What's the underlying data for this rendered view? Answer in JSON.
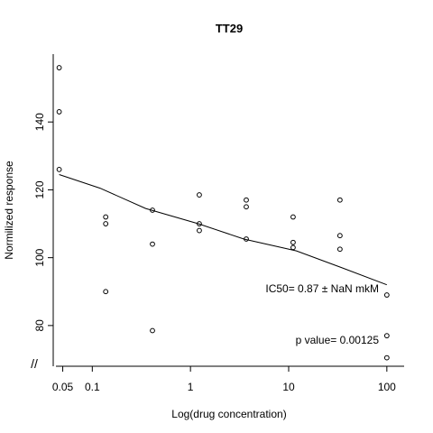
{
  "chart_data": {
    "type": "scatter",
    "title": "TT29",
    "xlabel": "Log(drug concentration)",
    "ylabel": "Normilized response",
    "x_scale": "log10",
    "xlim": [
      0.04,
      150
    ],
    "ylim": [
      68,
      160
    ],
    "x_ticks": [
      0.05,
      0.1,
      1,
      10,
      100
    ],
    "x_tick_labels": [
      "0.05",
      "0.1",
      "1",
      "10",
      "100"
    ],
    "y_ticks": [
      80,
      100,
      120,
      140
    ],
    "y_tick_labels": [
      "80",
      "100",
      "120",
      "140"
    ],
    "axis_break": "//",
    "points": [
      {
        "x": 0.046,
        "y": 156
      },
      {
        "x": 0.046,
        "y": 143
      },
      {
        "x": 0.046,
        "y": 126
      },
      {
        "x": 0.137,
        "y": 112
      },
      {
        "x": 0.137,
        "y": 110
      },
      {
        "x": 0.137,
        "y": 90
      },
      {
        "x": 0.41,
        "y": 114
      },
      {
        "x": 0.41,
        "y": 104
      },
      {
        "x": 0.41,
        "y": 78.5
      },
      {
        "x": 1.23,
        "y": 118.5
      },
      {
        "x": 1.23,
        "y": 110
      },
      {
        "x": 1.23,
        "y": 108
      },
      {
        "x": 3.7,
        "y": 117
      },
      {
        "x": 3.7,
        "y": 115
      },
      {
        "x": 3.7,
        "y": 105.5
      },
      {
        "x": 11.1,
        "y": 112
      },
      {
        "x": 11.1,
        "y": 104.5
      },
      {
        "x": 11.1,
        "y": 103
      },
      {
        "x": 33.3,
        "y": 117
      },
      {
        "x": 33.3,
        "y": 106.5
      },
      {
        "x": 33.3,
        "y": 102.5
      },
      {
        "x": 100,
        "y": 89
      },
      {
        "x": 100,
        "y": 77
      },
      {
        "x": 100,
        "y": 70.5
      }
    ],
    "fit_line": [
      {
        "x": 0.046,
        "y": 124.5
      },
      {
        "x": 0.12,
        "y": 120.5
      },
      {
        "x": 0.35,
        "y": 114.5
      },
      {
        "x": 1.2,
        "y": 110
      },
      {
        "x": 3.5,
        "y": 105.5
      },
      {
        "x": 12,
        "y": 102
      },
      {
        "x": 35,
        "y": 97
      },
      {
        "x": 100,
        "y": 92
      }
    ],
    "annotations": {
      "ic50": "IC50= 0.87 ± NaN mkM",
      "pvalue": "p value= 0.00125"
    }
  }
}
